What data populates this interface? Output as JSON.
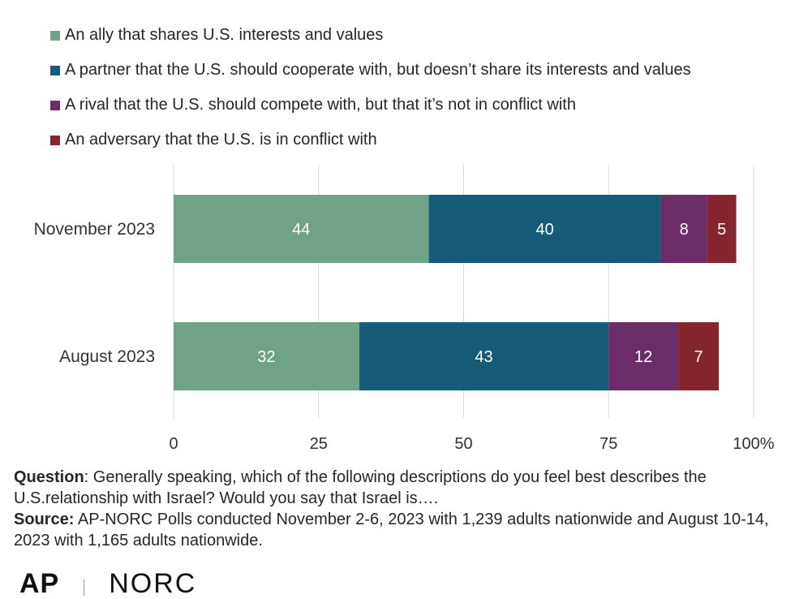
{
  "chart_data": {
    "type": "bar",
    "orientation": "horizontal",
    "stacked": true,
    "categories": [
      "November 2023",
      "August 2023"
    ],
    "series": [
      {
        "name": "An ally that shares U.S. interests and values",
        "color": "#6fa287",
        "values": [
          44,
          32
        ]
      },
      {
        "name": "A partner that the U.S. should cooperate with, but doesn’t share its interests and values",
        "color": "#175b7a",
        "values": [
          40,
          43
        ]
      },
      {
        "name": "A rival that the U.S. should compete with, but that it’s not in conflict with",
        "color": "#6a2d68",
        "values": [
          8,
          12
        ]
      },
      {
        "name": "An adversary that the U.S. is in conflict with",
        "color": "#842530",
        "values": [
          5,
          7
        ]
      }
    ],
    "xlim": [
      0,
      100
    ],
    "xticks": [
      "0",
      "25",
      "50",
      "75",
      "100%"
    ],
    "xtick_values": [
      0,
      25,
      50,
      75,
      100
    ],
    "grid": true,
    "legend_position": "top"
  },
  "footer": {
    "question_label": "Question",
    "question_text": ": Generally speaking, which of the following descriptions do you feel best describes the U.S.relationship with Israel? Would you say that Israel is….",
    "source_label": "Source:",
    "source_text": " AP-NORC Polls conducted November 2-6, 2023 with 1,239 adults nationwide and August 10-14, 2023 with 1,165 adults nationwide."
  },
  "logos": {
    "ap": "AP",
    "norc": "NORC"
  }
}
